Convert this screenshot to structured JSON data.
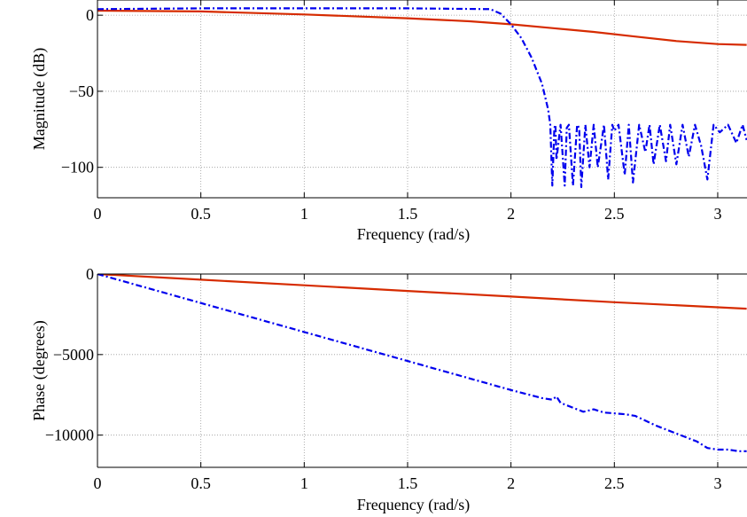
{
  "chart_data": [
    {
      "type": "line",
      "xlabel": "Frequency (rad/s)",
      "ylabel": "Magnitude (dB)",
      "xlim": [
        0,
        3.1416
      ],
      "ylim": [
        -120,
        10
      ],
      "xticks": [
        0,
        0.5,
        1,
        1.5,
        2,
        2.5,
        3
      ],
      "xtick_labels": [
        "0",
        "0.5",
        "1",
        "1.5",
        "2",
        "2.5",
        "3"
      ],
      "yticks": [
        0,
        -50,
        -100
      ],
      "ytick_labels": [
        "0",
        "−50",
        "−100"
      ],
      "grid": true,
      "series": [
        {
          "style": "solid",
          "color": "#d62b00",
          "x": [
            0,
            0.5,
            1.0,
            1.5,
            1.8,
            2.0,
            2.2,
            2.4,
            2.6,
            2.8,
            3.0,
            3.14
          ],
          "y": [
            3,
            2.5,
            0.5,
            -2,
            -4,
            -6,
            -8.5,
            -11,
            -14,
            -17,
            -19,
            -19.5
          ]
        },
        {
          "style": "dashdot",
          "color": "#0000ee",
          "x": [
            0,
            0.5,
            1.0,
            1.5,
            1.9,
            1.95,
            2.0,
            2.05,
            2.1,
            2.15,
            2.18,
            2.19,
            2.2,
            2.21,
            2.215,
            2.22,
            2.24,
            2.26,
            2.27,
            2.28,
            2.3,
            2.32,
            2.33,
            2.34,
            2.36,
            2.38,
            2.4,
            2.42,
            2.45,
            2.47,
            2.49,
            2.5,
            2.52,
            2.55,
            2.57,
            2.59,
            2.62,
            2.65,
            2.67,
            2.69,
            2.72,
            2.75,
            2.77,
            2.8,
            2.83,
            2.86,
            2.89,
            2.92,
            2.95,
            2.98,
            3.01,
            3.05,
            3.09,
            3.12,
            3.14
          ],
          "y": [
            4,
            4.5,
            4.5,
            4.5,
            4,
            1,
            -6,
            -15,
            -28,
            -45,
            -62,
            -72,
            -112,
            -74,
            -72,
            -95,
            -72,
            -112,
            -74,
            -72,
            -112,
            -72,
            -74,
            -113,
            -72,
            -100,
            -72,
            -100,
            -72,
            -108,
            -72,
            -76,
            -72,
            -105,
            -72,
            -110,
            -72,
            -90,
            -72,
            -98,
            -72,
            -96,
            -72,
            -98,
            -72,
            -93,
            -72,
            -86,
            -108,
            -72,
            -77,
            -72,
            -84,
            -72,
            -82
          ]
        }
      ]
    },
    {
      "type": "line",
      "xlabel": "Frequency (rad/s)",
      "ylabel": "Phase (degrees)",
      "xlim": [
        0,
        3.1416
      ],
      "ylim": [
        -12000,
        0
      ],
      "xticks": [
        0,
        0.5,
        1,
        1.5,
        2,
        2.5,
        3
      ],
      "xtick_labels": [
        "0",
        "0.5",
        "1",
        "1.5",
        "2",
        "2.5",
        "3"
      ],
      "yticks": [
        0,
        -5000,
        -10000
      ],
      "ytick_labels": [
        "0",
        "−5000",
        "−10000"
      ],
      "grid": true,
      "series": [
        {
          "style": "solid",
          "color": "#d62b00",
          "x": [
            0,
            0.5,
            1.0,
            1.5,
            2.0,
            2.5,
            3.14
          ],
          "y": [
            0,
            -350,
            -700,
            -1050,
            -1400,
            -1750,
            -2150
          ]
        },
        {
          "style": "dashdot",
          "color": "#0000ee",
          "x": [
            0,
            0.5,
            1.0,
            1.5,
            2.0,
            2.15,
            2.2,
            2.22,
            2.24,
            2.3,
            2.35,
            2.4,
            2.45,
            2.5,
            2.55,
            2.6,
            2.7,
            2.8,
            2.9,
            2.95,
            3.0,
            3.05,
            3.1,
            3.14
          ],
          "y": [
            0,
            -1800,
            -3600,
            -5400,
            -7200,
            -7700,
            -7800,
            -7600,
            -8000,
            -8300,
            -8550,
            -8400,
            -8600,
            -8650,
            -8700,
            -8800,
            -9400,
            -9900,
            -10400,
            -10800,
            -10900,
            -10900,
            -11000,
            -11000
          ]
        }
      ]
    }
  ],
  "colors": {
    "filter_solid": "#d62b00",
    "filter_dashdot": "#0000ee",
    "grid": "#9a9a9a"
  }
}
